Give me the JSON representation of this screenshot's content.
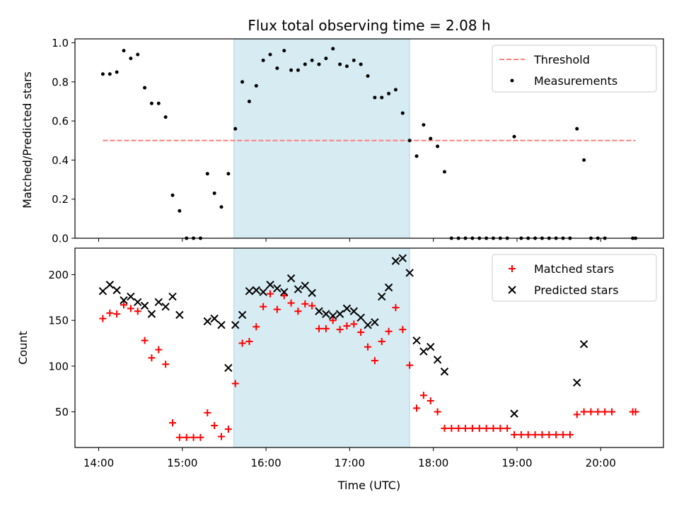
{
  "chart_data": [
    {
      "type": "scatter",
      "title": "Flux total observing time = 2.08 h",
      "xlabel": "",
      "ylabel": "Matched/Predicted stars",
      "xlim": [
        "13:43",
        "20:45"
      ],
      "ylim": [
        0,
        1.02
      ],
      "yticks": [
        "0.0",
        "0.2",
        "0.4",
        "0.6",
        "0.8",
        "1.0"
      ],
      "shaded_interval": [
        "15:37",
        "17:43"
      ],
      "threshold": {
        "name": "Threshold",
        "value": 0.5,
        "from": "14:03",
        "to": "20:25",
        "color": "#ff7f7f"
      },
      "legend": {
        "position": "top-right",
        "entries": [
          "Threshold",
          "Measurements"
        ]
      },
      "series": [
        {
          "name": "Measurements",
          "color": "#000000",
          "points": [
            [
              "14:03",
              0.84
            ],
            [
              "14:08",
              0.84
            ],
            [
              "14:13",
              0.85
            ],
            [
              "14:18",
              0.96
            ],
            [
              "14:23",
              0.92
            ],
            [
              "14:28",
              0.94
            ],
            [
              "14:33",
              0.77
            ],
            [
              "14:38",
              0.69
            ],
            [
              "14:43",
              0.69
            ],
            [
              "14:48",
              0.62
            ],
            [
              "14:53",
              0.22
            ],
            [
              "14:58",
              0.14
            ],
            [
              "15:03",
              0.0
            ],
            [
              "15:08",
              0.0
            ],
            [
              "15:13",
              0.0
            ],
            [
              "15:18",
              0.33
            ],
            [
              "15:23",
              0.23
            ],
            [
              "15:28",
              0.16
            ],
            [
              "15:33",
              0.33
            ],
            [
              "15:38",
              0.56
            ],
            [
              "15:43",
              0.8
            ],
            [
              "15:48",
              0.7
            ],
            [
              "15:53",
              0.78
            ],
            [
              "15:58",
              0.91
            ],
            [
              "16:03",
              0.94
            ],
            [
              "16:08",
              0.87
            ],
            [
              "16:13",
              0.96
            ],
            [
              "16:18",
              0.86
            ],
            [
              "16:23",
              0.86
            ],
            [
              "16:28",
              0.89
            ],
            [
              "16:33",
              0.91
            ],
            [
              "16:38",
              0.89
            ],
            [
              "16:43",
              0.92
            ],
            [
              "16:48",
              0.97
            ],
            [
              "16:53",
              0.89
            ],
            [
              "16:58",
              0.88
            ],
            [
              "17:03",
              0.91
            ],
            [
              "17:08",
              0.89
            ],
            [
              "17:13",
              0.83
            ],
            [
              "17:18",
              0.72
            ],
            [
              "17:23",
              0.72
            ],
            [
              "17:28",
              0.74
            ],
            [
              "17:33",
              0.76
            ],
            [
              "17:38",
              0.64
            ],
            [
              "17:43",
              0.5
            ],
            [
              "17:48",
              0.42
            ],
            [
              "17:53",
              0.58
            ],
            [
              "17:58",
              0.51
            ],
            [
              "18:03",
              0.47
            ],
            [
              "18:08",
              0.34
            ],
            [
              "18:13",
              0.0
            ],
            [
              "18:18",
              0.0
            ],
            [
              "18:23",
              0.0
            ],
            [
              "18:28",
              0.0
            ],
            [
              "18:33",
              0.0
            ],
            [
              "18:38",
              0.0
            ],
            [
              "18:43",
              0.0
            ],
            [
              "18:48",
              0.0
            ],
            [
              "18:53",
              0.0
            ],
            [
              "18:58",
              0.52
            ],
            [
              "19:03",
              0.0
            ],
            [
              "19:08",
              0.0
            ],
            [
              "19:13",
              0.0
            ],
            [
              "19:18",
              0.0
            ],
            [
              "19:23",
              0.0
            ],
            [
              "19:28",
              0.0
            ],
            [
              "19:33",
              0.0
            ],
            [
              "19:38",
              0.0
            ],
            [
              "19:43",
              0.56
            ],
            [
              "19:48",
              0.4
            ],
            [
              "19:53",
              0.0
            ],
            [
              "19:58",
              0.0
            ],
            [
              "20:03",
              0.0
            ],
            [
              "20:23",
              0.0
            ],
            [
              "20:25",
              0.0
            ]
          ]
        }
      ]
    },
    {
      "type": "scatter",
      "title": "",
      "xlabel": "Time (UTC)",
      "ylabel": "Count",
      "xlim": [
        "13:43",
        "20:45"
      ],
      "ylim": [
        11,
        229
      ],
      "xticks": [
        "14:00",
        "15:00",
        "16:00",
        "17:00",
        "18:00",
        "19:00",
        "20:00"
      ],
      "yticks": [
        "50",
        "100",
        "150",
        "200"
      ],
      "shaded_interval": [
        "15:37",
        "17:43"
      ],
      "legend": {
        "position": "top-right",
        "entries": [
          "Matched stars",
          "Predicted stars"
        ]
      },
      "series": [
        {
          "name": "Matched stars",
          "color": "#ff0000",
          "marker": "+",
          "points": [
            [
              "14:03",
              152
            ],
            [
              "14:08",
              158
            ],
            [
              "14:13",
              157
            ],
            [
              "14:18",
              167
            ],
            [
              "14:23",
              163
            ],
            [
              "14:28",
              160
            ],
            [
              "14:33",
              128
            ],
            [
              "14:38",
              109
            ],
            [
              "14:43",
              118
            ],
            [
              "14:48",
              102
            ],
            [
              "14:53",
              38
            ],
            [
              "14:58",
              22
            ],
            [
              "15:03",
              22
            ],
            [
              "15:08",
              22
            ],
            [
              "15:13",
              22
            ],
            [
              "15:18",
              49
            ],
            [
              "15:23",
              35
            ],
            [
              "15:28",
              23
            ],
            [
              "15:33",
              31
            ],
            [
              "15:38",
              81
            ],
            [
              "15:43",
              125
            ],
            [
              "15:48",
              127
            ],
            [
              "15:53",
              143
            ],
            [
              "15:58",
              165
            ],
            [
              "16:03",
              179
            ],
            [
              "16:08",
              162
            ],
            [
              "16:13",
              177
            ],
            [
              "16:18",
              169
            ],
            [
              "16:23",
              160
            ],
            [
              "16:28",
              168
            ],
            [
              "16:33",
              166
            ],
            [
              "16:38",
              141
            ],
            [
              "16:43",
              141
            ],
            [
              "16:48",
              150
            ],
            [
              "16:53",
              140
            ],
            [
              "16:58",
              144
            ],
            [
              "17:03",
              146
            ],
            [
              "17:08",
              137
            ],
            [
              "17:13",
              121
            ],
            [
              "17:18",
              106
            ],
            [
              "17:23",
              127
            ],
            [
              "17:28",
              138
            ],
            [
              "17:33",
              164
            ],
            [
              "17:38",
              140
            ],
            [
              "17:43",
              101
            ],
            [
              "17:48",
              54
            ],
            [
              "17:53",
              68
            ],
            [
              "17:58",
              62
            ],
            [
              "18:03",
              50
            ],
            [
              "18:08",
              32
            ],
            [
              "18:13",
              32
            ],
            [
              "18:18",
              32
            ],
            [
              "18:23",
              32
            ],
            [
              "18:28",
              32
            ],
            [
              "18:33",
              32
            ],
            [
              "18:38",
              32
            ],
            [
              "18:43",
              32
            ],
            [
              "18:48",
              32
            ],
            [
              "18:53",
              32
            ],
            [
              "18:58",
              25
            ],
            [
              "19:03",
              25
            ],
            [
              "19:08",
              25
            ],
            [
              "19:13",
              25
            ],
            [
              "19:18",
              25
            ],
            [
              "19:23",
              25
            ],
            [
              "19:28",
              25
            ],
            [
              "19:33",
              25
            ],
            [
              "19:38",
              25
            ],
            [
              "19:43",
              47
            ],
            [
              "19:48",
              50
            ],
            [
              "19:53",
              50
            ],
            [
              "19:58",
              50
            ],
            [
              "20:03",
              50
            ],
            [
              "20:08",
              50
            ],
            [
              "20:23",
              50
            ],
            [
              "20:25",
              50
            ]
          ]
        },
        {
          "name": "Predicted stars",
          "color": "#000000",
          "marker": "x",
          "points": [
            [
              "14:03",
              182
            ],
            [
              "14:08",
              189
            ],
            [
              "14:13",
              183
            ],
            [
              "14:18",
              172
            ],
            [
              "14:23",
              176
            ],
            [
              "14:28",
              170
            ],
            [
              "14:33",
              166
            ],
            [
              "14:38",
              157
            ],
            [
              "14:43",
              170
            ],
            [
              "14:48",
              165
            ],
            [
              "14:53",
              176
            ],
            [
              "14:58",
              156
            ],
            [
              "15:18",
              149
            ],
            [
              "15:23",
              152
            ],
            [
              "15:28",
              145
            ],
            [
              "15:33",
              98
            ],
            [
              "15:38",
              145
            ],
            [
              "15:43",
              156
            ],
            [
              "15:48",
              182
            ],
            [
              "15:53",
              183
            ],
            [
              "15:58",
              181
            ],
            [
              "16:03",
              189
            ],
            [
              "16:08",
              185
            ],
            [
              "16:13",
              181
            ],
            [
              "16:18",
              196
            ],
            [
              "16:23",
              184
            ],
            [
              "16:28",
              188
            ],
            [
              "16:33",
              180
            ],
            [
              "16:38",
              160
            ],
            [
              "16:43",
              157
            ],
            [
              "16:48",
              155
            ],
            [
              "16:53",
              157
            ],
            [
              "16:58",
              163
            ],
            [
              "17:03",
              160
            ],
            [
              "17:08",
              153
            ],
            [
              "17:13",
              145
            ],
            [
              "17:18",
              148
            ],
            [
              "17:23",
              176
            ],
            [
              "17:28",
              186
            ],
            [
              "17:33",
              215
            ],
            [
              "17:38",
              218
            ],
            [
              "17:43",
              202
            ],
            [
              "17:48",
              128
            ],
            [
              "17:53",
              116
            ],
            [
              "17:58",
              121
            ],
            [
              "18:03",
              107
            ],
            [
              "18:08",
              94
            ],
            [
              "18:58",
              48
            ],
            [
              "19:43",
              82
            ],
            [
              "19:48",
              124
            ]
          ]
        }
      ]
    }
  ]
}
